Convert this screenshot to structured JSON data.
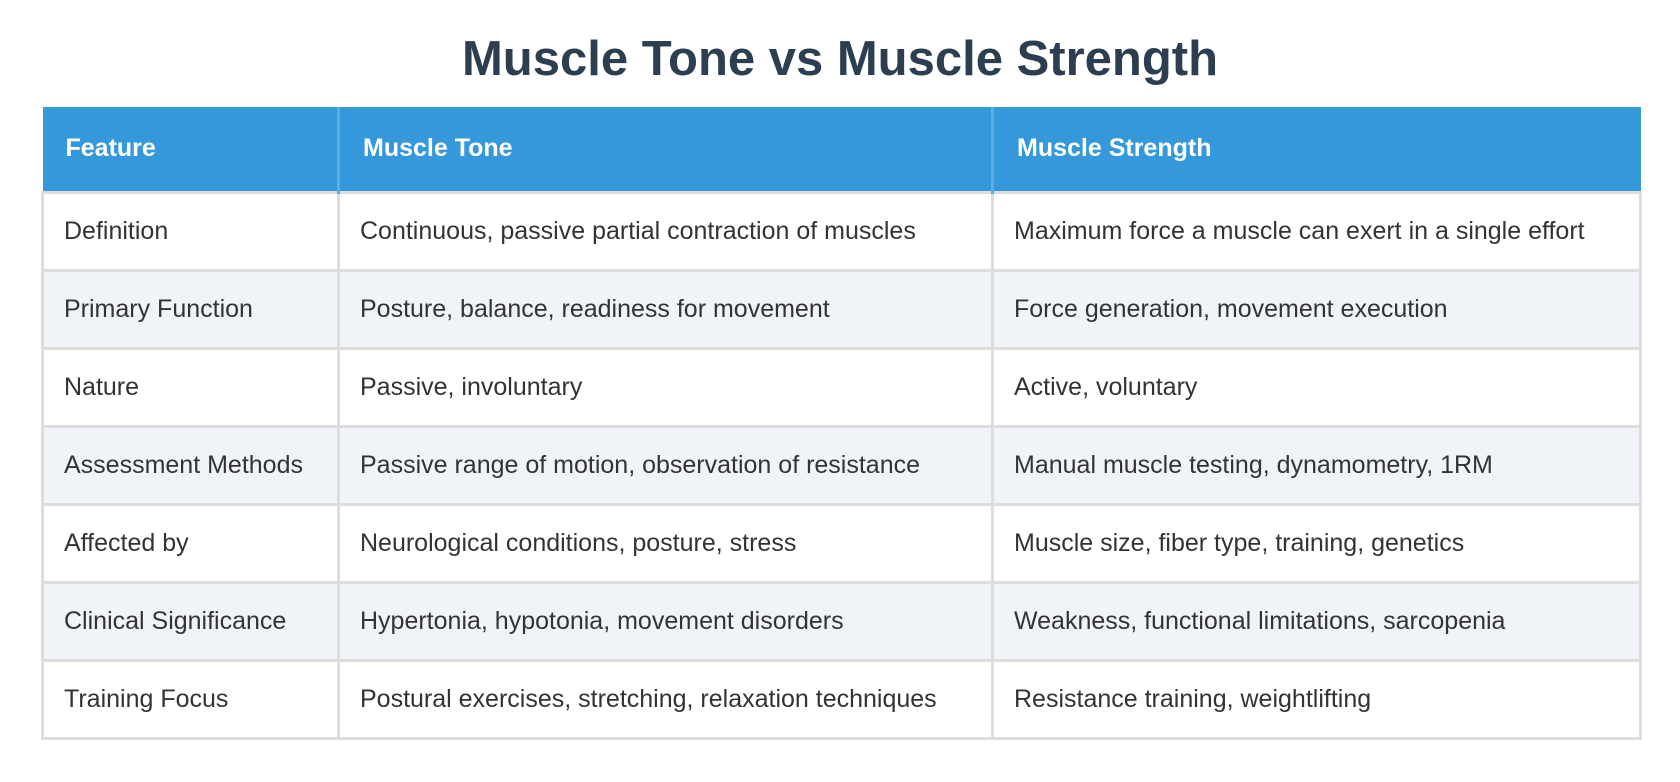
{
  "title": "Muscle Tone vs Muscle Strength",
  "colors": {
    "title": "#2c3e50",
    "header_bg": "#3498db",
    "header_text": "#ffffff",
    "row_alt_bg": "#f0f4f9",
    "border": "#dddddd",
    "cell_text": "#333333"
  },
  "table": {
    "headers": [
      "Feature",
      "Muscle Tone",
      "Muscle Strength"
    ],
    "rows": [
      [
        "Definition",
        "Continuous, passive partial contraction of muscles",
        "Maximum force a muscle can exert in a single effort"
      ],
      [
        "Primary Function",
        "Posture, balance, readiness for movement",
        "Force generation, movement execution"
      ],
      [
        "Nature",
        "Passive, involuntary",
        "Active, voluntary"
      ],
      [
        "Assessment Methods",
        "Passive range of motion, observation of resistance",
        "Manual muscle testing, dynamometry, 1RM"
      ],
      [
        "Affected by",
        "Neurological conditions, posture, stress",
        "Muscle size, fiber type, training, genetics"
      ],
      [
        "Clinical Significance",
        "Hypertonia, hypotonia, movement disorders",
        "Weakness, functional limitations, sarcopenia"
      ],
      [
        "Training Focus",
        "Postural exercises, stretching, relaxation techniques",
        "Resistance training, weightlifting"
      ]
    ]
  }
}
